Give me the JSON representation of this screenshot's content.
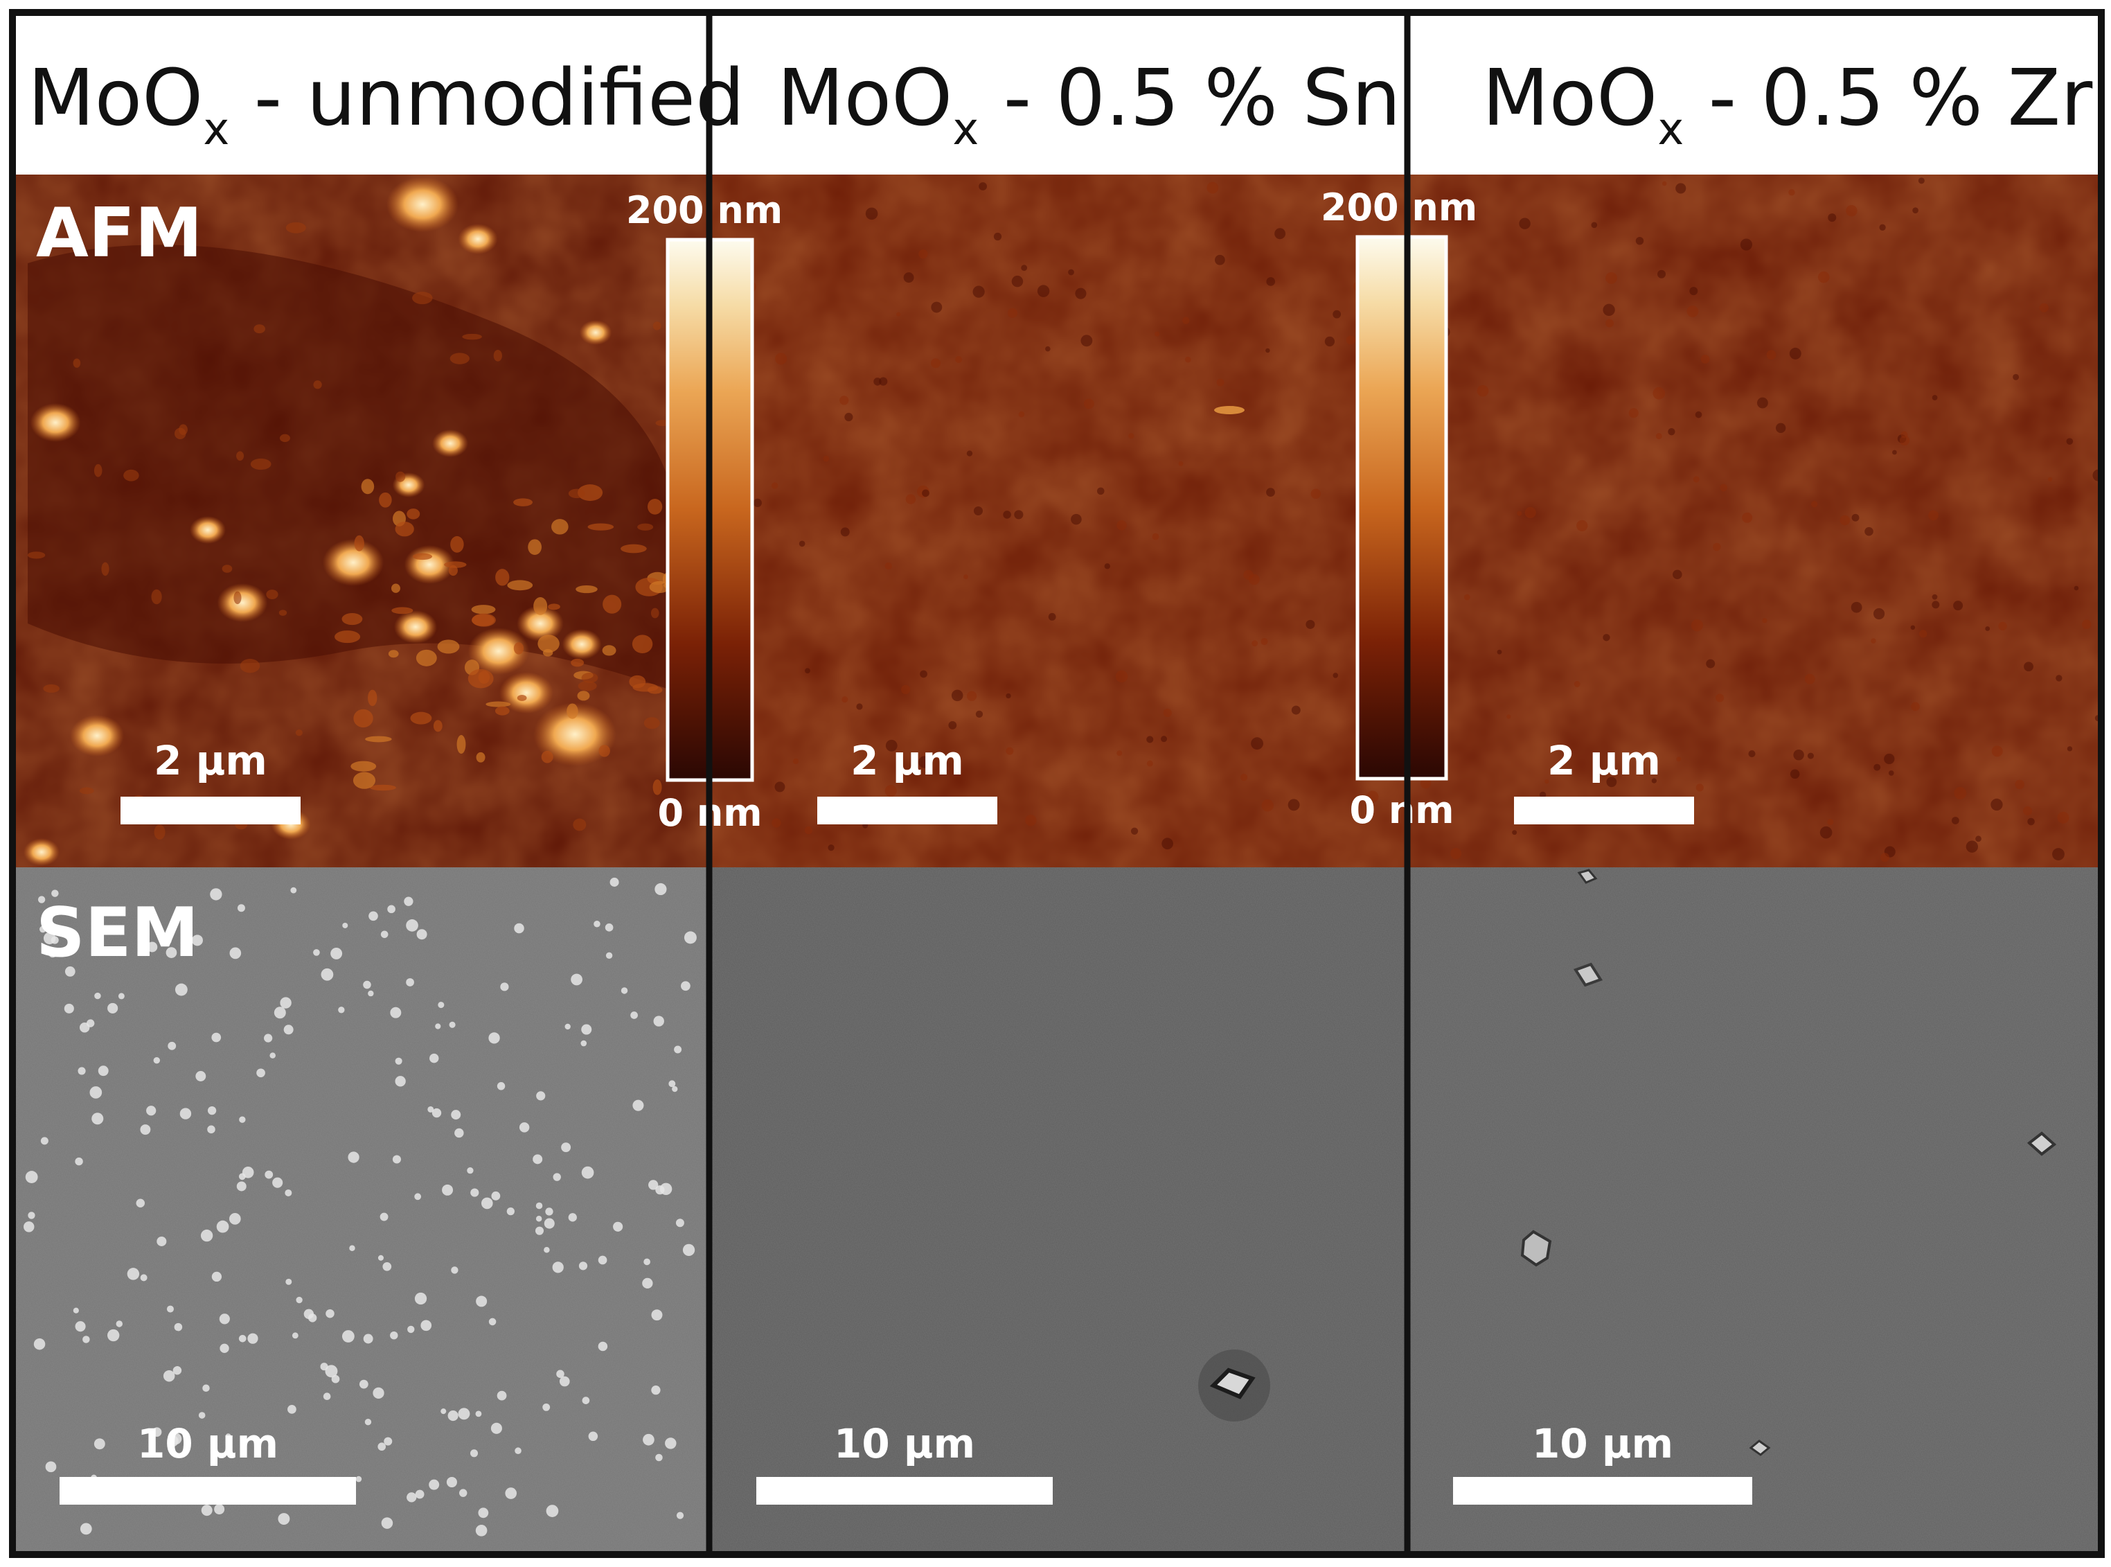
{
  "figure": {
    "columns": [
      {
        "title_main": "MoO",
        "title_sub": "x",
        "title_rest": " - unmodified"
      },
      {
        "title_main": "MoO",
        "title_sub": "x",
        "title_rest": " - 0.5 % Sn"
      },
      {
        "title_main": "MoO",
        "title_sub": "x",
        "title_rest": " - 0.5 % Zr"
      }
    ],
    "rows": {
      "afm_label": "AFM",
      "sem_label": "SEM"
    },
    "afm_scale_label": "2 μm",
    "sem_scale_label": "10 μm",
    "colorbar": {
      "max_label": "200 nm",
      "min_label": "0 nm"
    }
  },
  "colors": {
    "afm_dark": "#5a1505",
    "afm_mid": "#7a2208",
    "afm_light": "#f8f0dc",
    "sem_light": "#767676",
    "sem_dark": "#5c5c5c",
    "frame": "#111111"
  }
}
